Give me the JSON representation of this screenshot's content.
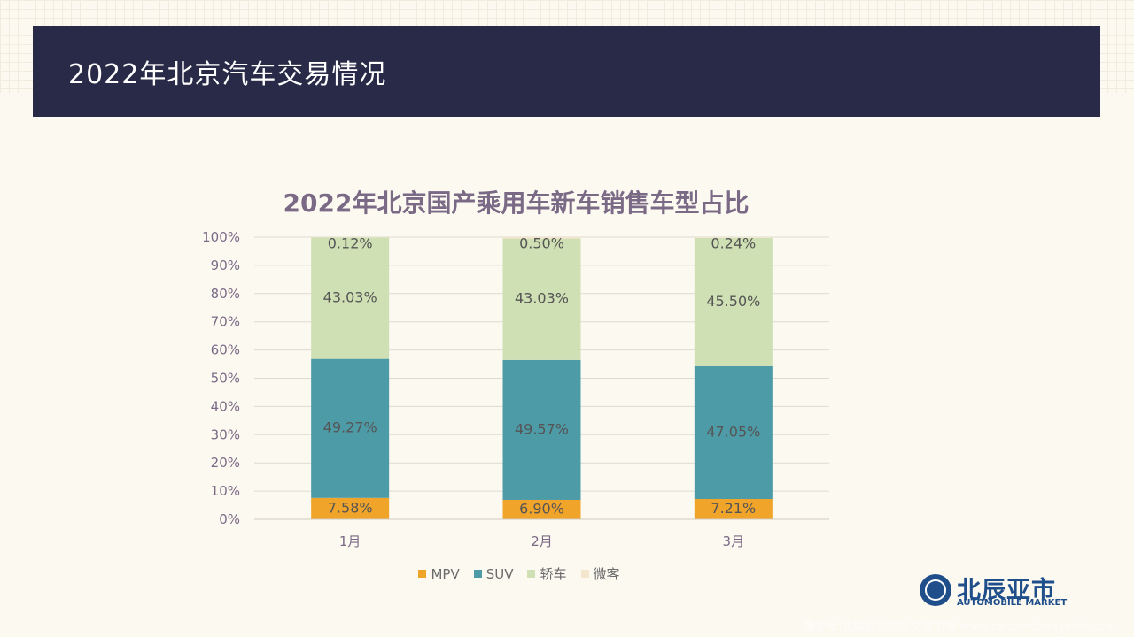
{
  "header": {
    "title": "2022年北京汽车交易情况"
  },
  "chart_data": {
    "type": "bar",
    "stacked": true,
    "title": "2022年北京国产乘用车新车销售车型占比",
    "categories": [
      "1月",
      "2月",
      "3月"
    ],
    "series": [
      {
        "name": "MPV",
        "values": [
          7.58,
          6.9,
          7.21
        ],
        "labels": [
          "7.58%",
          "6.90%",
          "7.21%"
        ],
        "color": "#f0a42a"
      },
      {
        "name": "SUV",
        "values": [
          49.27,
          49.57,
          47.05
        ],
        "labels": [
          "49.27%",
          "49.57%",
          "47.05%"
        ],
        "color": "#4e9ba8"
      },
      {
        "name": "轿车",
        "values": [
          43.03,
          43.03,
          45.5
        ],
        "labels": [
          "43.03%",
          "43.03%",
          "45.50%"
        ],
        "color": "#cfe0b4"
      },
      {
        "name": "微客",
        "values": [
          0.12,
          0.5,
          0.24
        ],
        "labels": [
          "0.12%",
          "0.50%",
          "0.24%"
        ],
        "color": "#f3e6cc"
      }
    ],
    "y_ticks": [
      "0%",
      "10%",
      "20%",
      "30%",
      "40%",
      "50%",
      "60%",
      "70%",
      "80%",
      "90%",
      "100%"
    ],
    "ylim": [
      0,
      100
    ],
    "grid": true,
    "legend": "bottom"
  },
  "logo": {
    "cn": "北辰亚市",
    "en": "AUTOMOBILE MARKET"
  },
  "watermark": "懂车帝:北辰亚市汽车交易市场 www.car.beichenyashi.com"
}
